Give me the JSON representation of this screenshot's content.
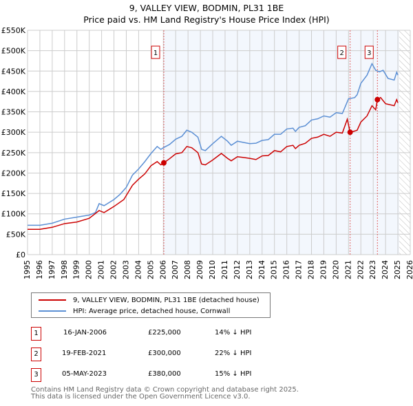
{
  "chart_data": {
    "type": "line",
    "title": "9, VALLEY VIEW, BODMIN, PL31 1BE",
    "subtitle": "Price paid vs. HM Land Registry's House Price Index (HPI)",
    "xlim": [
      1995,
      2026
    ],
    "ylim": [
      0,
      550000
    ],
    "x_ticks": [
      "1995",
      "1996",
      "1997",
      "1998",
      "1999",
      "2000",
      "2001",
      "2002",
      "2003",
      "2004",
      "2005",
      "2006",
      "2007",
      "2008",
      "2009",
      "2010",
      "2011",
      "2012",
      "2013",
      "2014",
      "2015",
      "2016",
      "2017",
      "2018",
      "2019",
      "2020",
      "2021",
      "2022",
      "2023",
      "2024",
      "2025",
      "2026"
    ],
    "y_ticks": [
      "£0",
      "£50K",
      "£100K",
      "£150K",
      "£200K",
      "£250K",
      "£300K",
      "£350K",
      "£400K",
      "£450K",
      "£500K",
      "£550K"
    ],
    "grid": true,
    "shaded_from": 2006.04,
    "hatched_from": 2025.1,
    "series": [
      {
        "name": "9, VALLEY VIEW, BODMIN, PL31 1BE (detached house)",
        "color": "#cc0000",
        "points": [
          [
            1995,
            62
          ],
          [
            1996,
            62
          ],
          [
            1997,
            67
          ],
          [
            1998,
            76
          ],
          [
            1999,
            80
          ],
          [
            2000,
            89
          ],
          [
            2000.8,
            108
          ],
          [
            2001.2,
            103
          ],
          [
            2002,
            118
          ],
          [
            2002.8,
            135
          ],
          [
            2003.5,
            170
          ],
          [
            2004,
            185
          ],
          [
            2004.5,
            198
          ],
          [
            2005,
            218
          ],
          [
            2005.5,
            228
          ],
          [
            2005.8,
            220
          ],
          [
            2006.04,
            225
          ],
          [
            2006.5,
            235
          ],
          [
            2007,
            247
          ],
          [
            2007.5,
            250
          ],
          [
            2007.9,
            265
          ],
          [
            2008.3,
            262
          ],
          [
            2008.8,
            250
          ],
          [
            2009.1,
            222
          ],
          [
            2009.4,
            220
          ],
          [
            2010,
            232
          ],
          [
            2010.7,
            248
          ],
          [
            2011.2,
            236
          ],
          [
            2011.5,
            230
          ],
          [
            2012,
            240
          ],
          [
            2012.5,
            238
          ],
          [
            2013,
            236
          ],
          [
            2013.5,
            233
          ],
          [
            2014,
            242
          ],
          [
            2014.5,
            243
          ],
          [
            2015,
            255
          ],
          [
            2015.5,
            252
          ],
          [
            2016,
            265
          ],
          [
            2016.5,
            268
          ],
          [
            2016.7,
            260
          ],
          [
            2017,
            268
          ],
          [
            2017.5,
            273
          ],
          [
            2018,
            285
          ],
          [
            2018.5,
            288
          ],
          [
            2019,
            295
          ],
          [
            2019.5,
            290
          ],
          [
            2020,
            300
          ],
          [
            2020.5,
            298
          ],
          [
            2020.9,
            332
          ],
          [
            2021.13,
            300
          ],
          [
            2021.5,
            303
          ],
          [
            2021.7,
            305
          ],
          [
            2022,
            325
          ],
          [
            2022.5,
            340
          ],
          [
            2022.9,
            365
          ],
          [
            2023.2,
            355
          ],
          [
            2023.34,
            380
          ],
          [
            2023.6,
            385
          ],
          [
            2024,
            370
          ],
          [
            2024.7,
            365
          ],
          [
            2024.9,
            380
          ],
          [
            2025,
            372
          ]
        ]
      },
      {
        "name": "HPI: Average price, detached house, Cornwall",
        "color": "#5b8fd4",
        "points": [
          [
            1995,
            72
          ],
          [
            1996,
            72
          ],
          [
            1997,
            77
          ],
          [
            1998,
            87
          ],
          [
            1999,
            92
          ],
          [
            2000,
            97
          ],
          [
            2000.5,
            103
          ],
          [
            2000.8,
            125
          ],
          [
            2001.2,
            120
          ],
          [
            2002,
            135
          ],
          [
            2002.5,
            148
          ],
          [
            2003,
            165
          ],
          [
            2003.5,
            195
          ],
          [
            2004,
            210
          ],
          [
            2004.5,
            228
          ],
          [
            2005,
            248
          ],
          [
            2005.5,
            265
          ],
          [
            2005.8,
            258
          ],
          [
            2006,
            262
          ],
          [
            2006.5,
            270
          ],
          [
            2007,
            283
          ],
          [
            2007.5,
            290
          ],
          [
            2007.9,
            305
          ],
          [
            2008.3,
            300
          ],
          [
            2008.8,
            288
          ],
          [
            2009.1,
            258
          ],
          [
            2009.4,
            255
          ],
          [
            2010,
            272
          ],
          [
            2010.7,
            290
          ],
          [
            2011.2,
            278
          ],
          [
            2011.5,
            268
          ],
          [
            2012,
            278
          ],
          [
            2012.5,
            275
          ],
          [
            2013,
            272
          ],
          [
            2013.5,
            273
          ],
          [
            2014,
            280
          ],
          [
            2014.5,
            282
          ],
          [
            2015,
            295
          ],
          [
            2015.5,
            295
          ],
          [
            2016,
            308
          ],
          [
            2016.5,
            310
          ],
          [
            2016.7,
            302
          ],
          [
            2017,
            312
          ],
          [
            2017.5,
            316
          ],
          [
            2018,
            330
          ],
          [
            2018.5,
            333
          ],
          [
            2019,
            340
          ],
          [
            2019.5,
            337
          ],
          [
            2020,
            348
          ],
          [
            2020.5,
            346
          ],
          [
            2021,
            382
          ],
          [
            2021.5,
            385
          ],
          [
            2021.7,
            392
          ],
          [
            2022,
            420
          ],
          [
            2022.5,
            440
          ],
          [
            2022.9,
            468
          ],
          [
            2023.2,
            452
          ],
          [
            2023.5,
            448
          ],
          [
            2023.8,
            452
          ],
          [
            2024.2,
            432
          ],
          [
            2024.7,
            428
          ],
          [
            2024.9,
            447
          ],
          [
            2025,
            440
          ]
        ]
      }
    ],
    "markers": [
      {
        "label": "1",
        "x": 2006.04,
        "y": 225
      },
      {
        "label": "2",
        "x": 2021.13,
        "y": 300
      },
      {
        "label": "3",
        "x": 2023.34,
        "y": 380
      }
    ]
  },
  "transactions": [
    {
      "num": "1",
      "date": "16-JAN-2006",
      "price": "£225,000",
      "hpi": "14% ↓ HPI"
    },
    {
      "num": "2",
      "date": "19-FEB-2021",
      "price": "£300,000",
      "hpi": "22% ↓ HPI"
    },
    {
      "num": "3",
      "date": "05-MAY-2023",
      "price": "£380,000",
      "hpi": "15% ↓ HPI"
    }
  ],
  "footer": {
    "line1": "Contains HM Land Registry data © Crown copyright and database right 2025.",
    "line2": "This data is licensed under the Open Government Licence v3.0."
  }
}
